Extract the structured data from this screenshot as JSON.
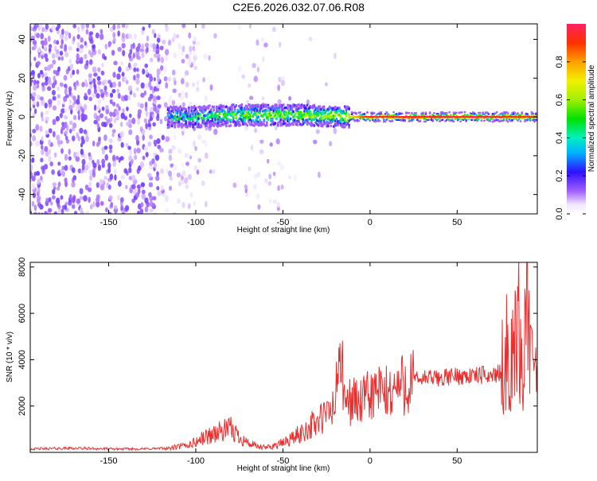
{
  "title": "C2E6.2026.032.07.06.R08",
  "chart_data": [
    {
      "type": "heatmap",
      "xlabel": "Height of straight line (km)",
      "ylabel": "Frequency (Hz)",
      "xlim": [
        -195,
        96
      ],
      "ylim": [
        -50,
        48
      ],
      "x_ticks": [
        -150,
        -100,
        -50,
        0,
        50
      ],
      "y_ticks": [
        -40,
        -20,
        0,
        20,
        40
      ],
      "colorbar": {
        "label": "Normalized spectral amplitude",
        "range": [
          0.0,
          1.0
        ],
        "ticks": [
          "0.0",
          "0.2",
          "0.4",
          "0.6",
          "0.8"
        ],
        "tick_values": [
          0.0,
          0.2,
          0.4,
          0.6,
          0.8
        ]
      },
      "signal_track": {
        "description_points_x": [
          -115,
          -100,
          -80,
          -60,
          -40,
          -20,
          -12,
          0,
          10,
          20,
          40,
          60,
          80,
          95
        ],
        "center_freq": [
          0,
          0,
          0.8,
          1.0,
          0.8,
          0.5,
          0,
          0,
          0,
          0,
          0,
          0,
          0,
          0
        ],
        "peak_amplitude": [
          0.35,
          0.4,
          0.5,
          0.55,
          0.55,
          0.6,
          0.7,
          0.95,
          0.9,
          0.95,
          0.95,
          0.95,
          0.9,
          0.9
        ]
      }
    },
    {
      "type": "line",
      "xlabel": "Height of straight line (km)",
      "ylabel": "SNR (10 * v/v)",
      "xlim": [
        -195,
        96
      ],
      "ylim": [
        0,
        8200
      ],
      "x_ticks": [
        -150,
        -100,
        -50,
        0,
        50
      ],
      "y_ticks": [
        2000,
        4000,
        6000,
        8000
      ],
      "line_color": "#e83030",
      "series": [
        {
          "x": [
            -195,
            -170,
            -150,
            -130,
            -115,
            -105,
            -100,
            -95,
            -90,
            -85,
            -80,
            -75,
            -70,
            -65,
            -60,
            -55,
            -50,
            -45,
            -40,
            -35,
            -30,
            -25,
            -20,
            -17,
            -15,
            -10,
            -5,
            0,
            5,
            10,
            15,
            20,
            25,
            30,
            40,
            50,
            60,
            70,
            75,
            78,
            80,
            85,
            88,
            90,
            92,
            96
          ],
          "y": [
            150,
            180,
            150,
            150,
            180,
            300,
            450,
            650,
            800,
            900,
            1000,
            700,
            400,
            250,
            200,
            300,
            400,
            600,
            800,
            1100,
            1300,
            1600,
            2000,
            4900,
            2100,
            2300,
            2100,
            2500,
            2600,
            2500,
            2800,
            3000,
            3100,
            3200,
            3200,
            3300,
            3300,
            3350,
            3400,
            4500,
            3200,
            5700,
            3000,
            8200,
            3500,
            4200
          ]
        }
      ]
    }
  ]
}
